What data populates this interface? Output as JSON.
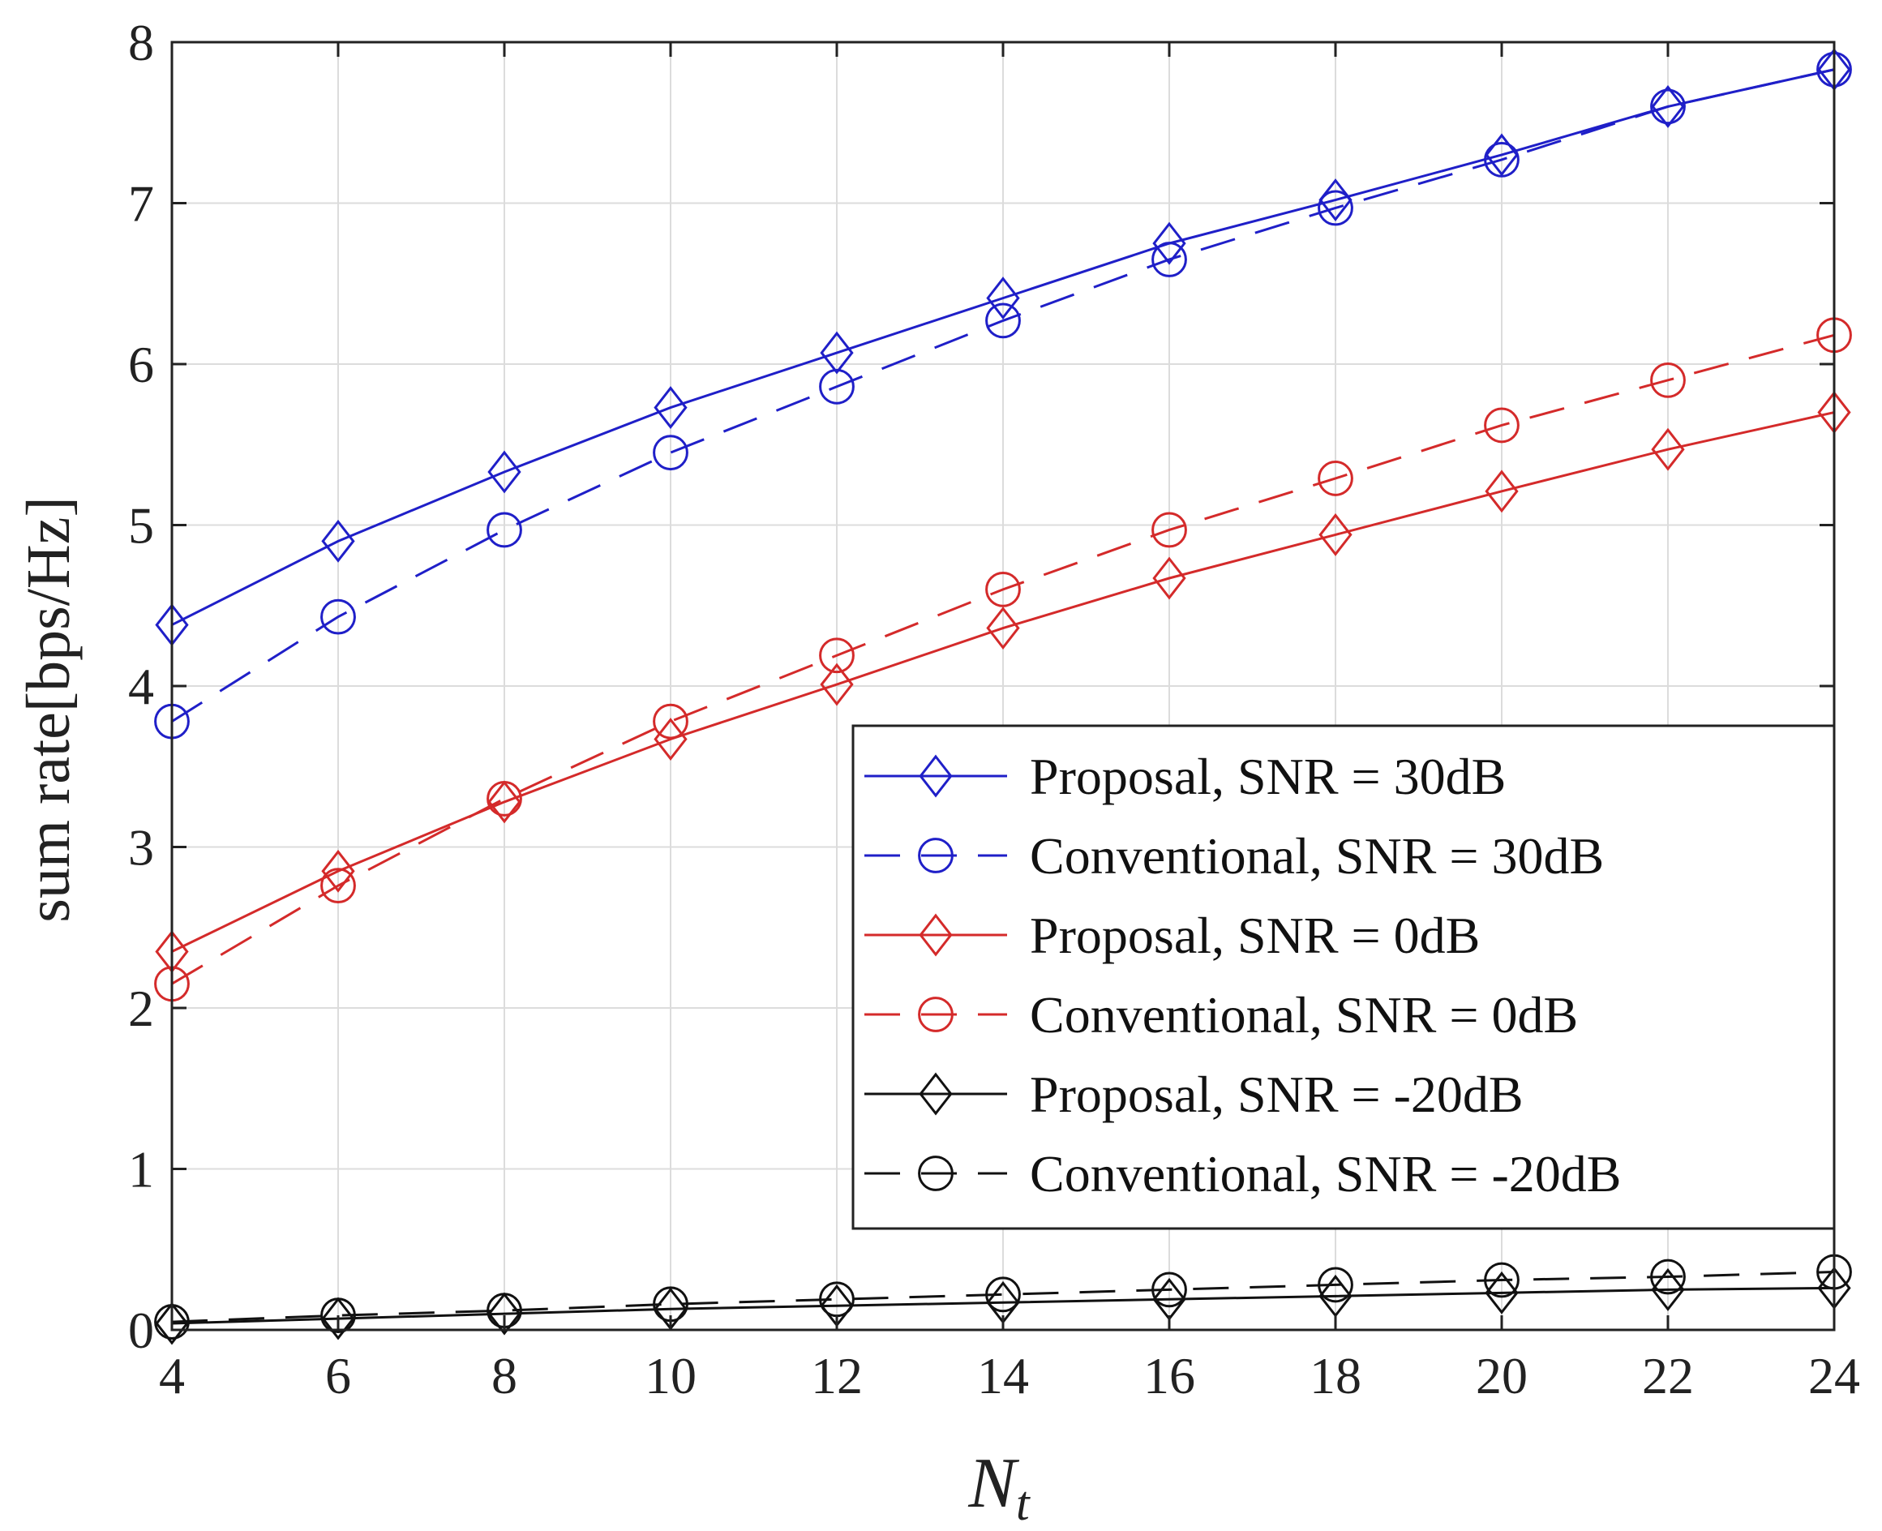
{
  "chart_data": {
    "type": "line",
    "title": "",
    "xlabel_base": "N",
    "xlabel_sub": "t",
    "ylabel": "sum rate[bps/Hz]",
    "xlim": [
      4,
      24
    ],
    "ylim": [
      0,
      8
    ],
    "x_ticks": [
      4,
      6,
      8,
      10,
      12,
      14,
      16,
      18,
      20,
      22,
      24
    ],
    "y_ticks": [
      0,
      1,
      2,
      3,
      4,
      5,
      6,
      7,
      8
    ],
    "grid": true,
    "legend_position": "center-right",
    "x": [
      4,
      6,
      8,
      10,
      12,
      14,
      16,
      18,
      20,
      22,
      24
    ],
    "series": [
      {
        "name": "Proposal, SNR = 30dB",
        "color": "#1f1fc8",
        "line": "solid",
        "marker": "diamond",
        "values": [
          4.38,
          4.9,
          5.33,
          5.73,
          6.07,
          6.41,
          6.75,
          7.02,
          7.3,
          7.6,
          7.83
        ]
      },
      {
        "name": "Conventional, SNR = 30dB",
        "color": "#1f1fc8",
        "line": "dashed",
        "marker": "circle",
        "values": [
          3.78,
          4.43,
          4.97,
          5.45,
          5.86,
          6.27,
          6.65,
          6.97,
          7.27,
          7.6,
          7.83
        ]
      },
      {
        "name": "Proposal, SNR = 0dB",
        "color": "#d42a2a",
        "line": "solid",
        "marker": "diamond",
        "values": [
          2.35,
          2.85,
          3.28,
          3.67,
          4.01,
          4.36,
          4.67,
          4.94,
          5.21,
          5.47,
          5.7
        ]
      },
      {
        "name": "Conventional, SNR = 0dB",
        "color": "#d42a2a",
        "line": "dashed",
        "marker": "circle",
        "values": [
          2.15,
          2.76,
          3.3,
          3.78,
          4.19,
          4.6,
          4.97,
          5.29,
          5.62,
          5.9,
          6.18
        ]
      },
      {
        "name": "Proposal, SNR = -20dB",
        "color": "#111111",
        "line": "solid",
        "marker": "diamond",
        "values": [
          0.04,
          0.07,
          0.1,
          0.13,
          0.15,
          0.17,
          0.19,
          0.21,
          0.23,
          0.25,
          0.26
        ]
      },
      {
        "name": "Conventional, SNR = -20dB",
        "color": "#111111",
        "line": "dashed",
        "marker": "circle",
        "values": [
          0.05,
          0.09,
          0.12,
          0.16,
          0.19,
          0.22,
          0.25,
          0.28,
          0.31,
          0.33,
          0.36
        ]
      }
    ]
  }
}
